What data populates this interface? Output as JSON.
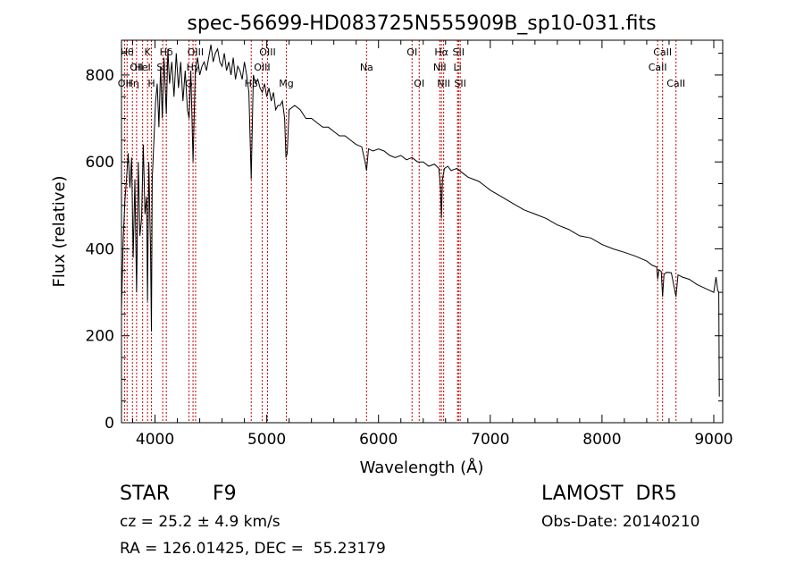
{
  "chart_data": {
    "type": "line",
    "title": "spec-56699-HD083725N555909B_sp10-031.fits",
    "xlabel": "Wavelength (Å)",
    "ylabel": "Flux (relative)",
    "xlim": [
      3700,
      9080
    ],
    "ylim": [
      0,
      880
    ],
    "xticks": [
      4000,
      5000,
      6000,
      7000,
      8000,
      9000
    ],
    "yticks": [
      0,
      200,
      400,
      600,
      800
    ],
    "series": [
      {
        "x": [
          3700,
          3715,
          3730,
          3745,
          3760,
          3775,
          3790,
          3805,
          3820,
          3835,
          3850,
          3865,
          3880,
          3895,
          3910,
          3925,
          3933,
          3945,
          3960,
          3968,
          3975,
          3990,
          4005,
          4020,
          4035,
          4050,
          4065,
          4080,
          4101,
          4115,
          4130,
          4150,
          4170,
          4190,
          4210,
          4230,
          4250,
          4270,
          4290,
          4305,
          4320,
          4340,
          4360,
          4380,
          4400,
          4420,
          4440,
          4460,
          4480,
          4500,
          4520,
          4540,
          4560,
          4580,
          4600,
          4620,
          4640,
          4660,
          4680,
          4700,
          4720,
          4740,
          4760,
          4780,
          4800,
          4820,
          4840,
          4861,
          4880,
          4900,
          4920,
          4940,
          4960,
          4980,
          5000,
          5020,
          5040,
          5060,
          5080,
          5100,
          5120,
          5140,
          5160,
          5172,
          5183,
          5200,
          5250,
          5300,
          5350,
          5400,
          5450,
          5500,
          5550,
          5600,
          5650,
          5700,
          5750,
          5800,
          5850,
          5880,
          5893,
          5910,
          5950,
          6000,
          6050,
          6100,
          6150,
          6200,
          6250,
          6300,
          6350,
          6400,
          6450,
          6500,
          6540,
          6555,
          6563,
          6572,
          6590,
          6620,
          6650,
          6700,
          6750,
          6800,
          6850,
          6900,
          6950,
          7000,
          7100,
          7200,
          7300,
          7400,
          7500,
          7600,
          7700,
          7800,
          7900,
          8000,
          8100,
          8200,
          8300,
          8400,
          8450,
          8490,
          8498,
          8510,
          8530,
          8542,
          8555,
          8580,
          8620,
          8662,
          8680,
          8720,
          8780,
          8850,
          8900,
          8950,
          9000,
          9020,
          9035,
          9045,
          9050
        ],
        "y": [
          260,
          420,
          510,
          560,
          620,
          540,
          610,
          380,
          560,
          300,
          600,
          430,
          470,
          640,
          480,
          520,
          280,
          600,
          400,
          210,
          560,
          650,
          740,
          780,
          680,
          820,
          700,
          840,
          710,
          860,
          780,
          830,
          750,
          850,
          770,
          830,
          740,
          810,
          720,
          700,
          810,
          600,
          810,
          840,
          800,
          820,
          830,
          810,
          840,
          870,
          830,
          850,
          860,
          830,
          820,
          850,
          810,
          830,
          800,
          840,
          790,
          820,
          810,
          790,
          830,
          800,
          760,
          560,
          800,
          780,
          790,
          770,
          760,
          780,
          750,
          770,
          740,
          760,
          720,
          730,
          730,
          740,
          700,
          610,
          620,
          720,
          730,
          720,
          700,
          700,
          690,
          680,
          680,
          670,
          660,
          660,
          650,
          640,
          635,
          600,
          580,
          630,
          625,
          630,
          625,
          615,
          610,
          615,
          605,
          610,
          600,
          600,
          590,
          595,
          585,
          540,
          470,
          560,
          585,
          590,
          580,
          585,
          575,
          565,
          560,
          555,
          545,
          535,
          520,
          505,
          490,
          480,
          470,
          455,
          445,
          430,
          425,
          410,
          400,
          392,
          383,
          372,
          362,
          358,
          330,
          352,
          348,
          290,
          342,
          346,
          345,
          290,
          340,
          335,
          330,
          318,
          312,
          306,
          300,
          335,
          305,
          300,
          60
        ]
      }
    ],
    "lines": [
      {
        "x": 3727,
        "label": "OII",
        "row": 3
      },
      {
        "x": 3750,
        "label": "Hθ",
        "row": 1
      },
      {
        "x": 3798,
        "label": "Hη",
        "row": 3
      },
      {
        "x": 3835,
        "label": "OII",
        "row": 2
      },
      {
        "x": 3889,
        "label": "HeI",
        "row": 2
      },
      {
        "x": 3933,
        "label": "K",
        "row": 1
      },
      {
        "x": 3968,
        "label": "H",
        "row": 3
      },
      {
        "x": 4069,
        "label": "SII",
        "row": 2
      },
      {
        "x": 4101,
        "label": "Hδ",
        "row": 1
      },
      {
        "x": 4304,
        "label": "G",
        "row": 3
      },
      {
        "x": 4340,
        "label": "Hγ",
        "row": 2
      },
      {
        "x": 4363,
        "label": "OIII",
        "row": 1
      },
      {
        "x": 4861,
        "label": "Hβ",
        "row": 3
      },
      {
        "x": 4959,
        "label": "OIII",
        "row": 2
      },
      {
        "x": 5007,
        "label": "OIII",
        "row": 1
      },
      {
        "x": 5175,
        "label": "Mg",
        "row": 3
      },
      {
        "x": 5893,
        "label": "Na",
        "row": 2
      },
      {
        "x": 6300,
        "label": "OI",
        "row": 1
      },
      {
        "x": 6364,
        "label": "OI",
        "row": 3
      },
      {
        "x": 6548,
        "label": "NII",
        "row": 2
      },
      {
        "x": 6563,
        "label": "Hα",
        "row": 1
      },
      {
        "x": 6583,
        "label": "NII",
        "row": 3
      },
      {
        "x": 6707,
        "label": "Li",
        "row": 2
      },
      {
        "x": 6716,
        "label": "SII",
        "row": 1
      },
      {
        "x": 6731,
        "label": "SII",
        "row": 3
      },
      {
        "x": 8498,
        "label": "CaII",
        "row": 2
      },
      {
        "x": 8542,
        "label": "CaII",
        "row": 1
      },
      {
        "x": 8662,
        "label": "CaII",
        "row": 3
      }
    ],
    "grid": false,
    "line_color": "#000000",
    "marker_color": "#cc0000"
  },
  "info": {
    "object_class": "STAR",
    "subclass": "F9",
    "survey": "LAMOST  DR5",
    "cz": "cz = 25.2 ± 4.9 km/s",
    "obs_date": "Obs-Date: 20140210",
    "radec": "RA = 126.01425, DEC =  55.23179"
  }
}
